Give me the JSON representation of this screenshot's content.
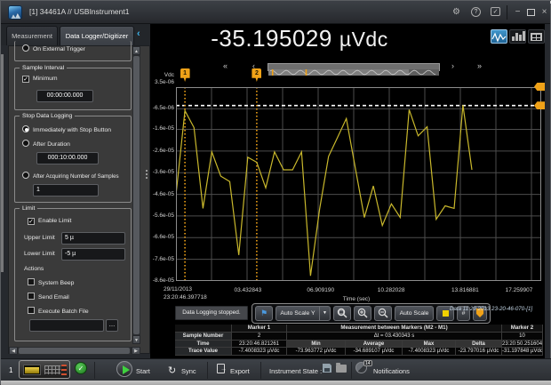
{
  "titlebar": {
    "title": "[1] 34461A // USBInstrument1"
  },
  "tabs": {
    "measurement": "Measurement",
    "datalogger": "Data Logger/Digitizer"
  },
  "sidebar": {
    "trigger_option": "On External Trigger",
    "sample_interval": {
      "title": "Sample Interval",
      "minimum": "Minimum",
      "value": "00:00:00.000"
    },
    "stop_logging": {
      "title": "Stop Data Logging",
      "immediate": "Immediately with Stop Button",
      "after_duration": "After Duration",
      "duration_value": "000:10:00.000",
      "after_samples": "After Acquiring Number of Samples",
      "samples_value": "1"
    },
    "limit": {
      "title": "Limit",
      "enable": "Enable Limit",
      "upper_label": "Upper Limit",
      "upper_value": "5 µ",
      "lower_label": "Lower Limit",
      "lower_value": "-5 µ",
      "actions": "Actions",
      "system_beep": "System Beep",
      "send_email": "Send Email",
      "execute_batch": "Execute Batch File",
      "batch_value": "",
      "browse": "…"
    }
  },
  "reading": {
    "value": "-35.195029",
    "unit": "µVdc"
  },
  "nav": {
    "fast_back": "«",
    "back": "‹",
    "fwd": "›",
    "fast_fwd": "»"
  },
  "toolbar": {
    "status_text": "Data Logging stopped.",
    "flag": "⚑",
    "scale_mode": "Auto Scale Y",
    "auto_scale": "Auto Scale",
    "hash": "#",
    "data_file": "Data 11 29 2013 23-20-46-070-[1]"
  },
  "chart_data": {
    "type": "line",
    "ylabel": "Vdc",
    "xlabel": "Time (sec)",
    "grid": true,
    "t_max": 17.45,
    "v_top_uV": 3.5,
    "v_bottom_uV": -86,
    "y_ticks": [
      {
        "label": "3.5e-06",
        "uV": 3.5
      },
      {
        "label": "-6.5e-06",
        "uV": -6.5
      },
      {
        "label": "-1.6e-05",
        "uV": -16
      },
      {
        "label": "-2.6e-05",
        "uV": -26
      },
      {
        "label": "-3.6e-05",
        "uV": -36
      },
      {
        "label": "-4.6e-05",
        "uV": -46
      },
      {
        "label": "-5.6e-05",
        "uV": -56
      },
      {
        "label": "-6.6e-05",
        "uV": -66
      },
      {
        "label": "-7.6e-05",
        "uV": -76
      },
      {
        "label": "-8.6e-05",
        "uV": -86
      }
    ],
    "x_ticks": [
      {
        "label": "29/11/2013",
        "label2": "23:20:46.397718",
        "t": 0
      },
      {
        "label": "03.432843",
        "t": 3.432843
      },
      {
        "label": "06.909190",
        "t": 6.90919
      },
      {
        "label": "10.282028",
        "t": 10.282028
      },
      {
        "label": "13.816881",
        "t": 13.816881
      },
      {
        "label": "17.259907",
        "t": 17.259907
      }
    ],
    "series": [
      {
        "name": "Vdc trace",
        "color": "#c9b82c",
        "t": [
          0,
          0.43,
          0.86,
          1.29,
          1.71,
          2.14,
          2.57,
          3.0,
          3.43,
          3.86,
          4.29,
          4.71,
          5.14,
          5.57,
          6.0,
          6.43,
          6.86,
          7.29,
          7.71,
          8.14,
          8.57,
          9.0,
          9.43,
          9.86,
          10.29,
          10.71,
          11.14,
          11.57,
          12.0,
          12.43,
          12.86,
          13.29,
          13.71,
          14.14
        ],
        "uV": [
          -46.3,
          -7.4,
          -15.2,
          -52.5,
          -26.4,
          -37.6,
          -40.1,
          -74.0,
          -28.9,
          -31.2,
          -43.0,
          -26.4,
          -34.7,
          -34.7,
          -26.4,
          -83.6,
          -52.9,
          -28.5,
          -19.9,
          -11.0,
          -33.8,
          -56.7,
          -42.1,
          -60.4,
          -50.4,
          -56.7,
          -6.9,
          -19.0,
          -14.8,
          -57.5,
          -51.3,
          -52.5,
          -4.8,
          -34.7
        ]
      }
    ],
    "markers": [
      {
        "id": "1",
        "t": 0.4288
      },
      {
        "id": "2",
        "t": 3.8591
      }
    ],
    "limit_lower_uV": -5,
    "marker_color": "#f0a218",
    "limit_line_color": "#ffffff"
  },
  "marker_table": {
    "marker1_header": "Marker 1",
    "between_header": "Measurement between Markers (M2 - M1)",
    "marker2_header": "Marker 2",
    "rows": {
      "sample": {
        "label": "Sample Number",
        "m1": "2",
        "between": "Δt = 03.430343 s",
        "m2": "10"
      },
      "time": {
        "label": "Time",
        "m1": "23:20:46.821261",
        "min": "Min",
        "avg": "Average",
        "max": "Max",
        "delta": "Delta",
        "m2": "23:20:50.251604"
      },
      "trace": {
        "label": "Trace Value",
        "m1": "-7.4008323 µVdc",
        "min": "-73.963772 µVdc",
        "avg": "-34.689107 µVdc",
        "max": "-7.4008323 µVdc",
        "delta": "-23.797016 µVdc",
        "m2": "-31.197848 µVdc"
      }
    }
  },
  "statusbar": {
    "tab": "1",
    "start": "Start",
    "sync": "Sync",
    "sync_glyph": "↻",
    "export": "Export",
    "instrument_state": "Instrument State :",
    "notifications": "Notifications",
    "badge": "14"
  }
}
